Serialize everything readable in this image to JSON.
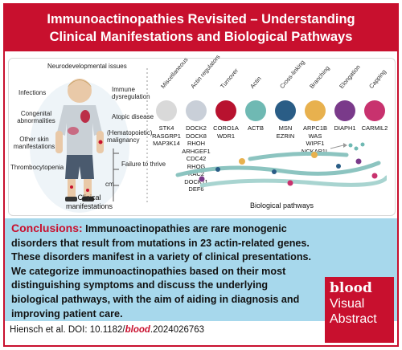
{
  "header": {
    "title_line1": "Immunoactinopathies Revisited – Understanding",
    "title_line2": "Clinical Manifestations and Biological Pathways"
  },
  "clinical": {
    "labels": [
      "Neurodevelopmental issues",
      "Infections",
      "Congenital abnormalities",
      "Other skin manifestations",
      "Thrombocytopenia",
      "Immune dysregulation",
      "Atopic disease",
      "(Hematopoietic) malignancy",
      "Failure to thrive"
    ],
    "cm": "cm",
    "caption_line1": "Clinical",
    "caption_line2": "manifestations"
  },
  "pathways": {
    "caption": "Biological pathways",
    "groups": [
      {
        "name": "Miscellaneous",
        "color": "#d9d9d9",
        "genes": [
          "STK4",
          "RASGRP1",
          "MAP3K14"
        ]
      },
      {
        "name": "Actin regulators",
        "color": "#c9cfd8",
        "genes": [
          "DOCK2",
          "DOCK8",
          "RHOH",
          "ARHGEF1",
          "CDC42",
          "RHOG",
          "RAC2",
          "DOCK11",
          "DEF6"
        ]
      },
      {
        "name": "Turnover",
        "color": "#b8122f",
        "genes": [
          "CORO1A",
          "WDR1"
        ]
      },
      {
        "name": "Actin",
        "color": "#6fb9b3",
        "genes": [
          "ACTB"
        ]
      },
      {
        "name": "Cross-linking",
        "color": "#2a5d86",
        "genes": [
          "MSN",
          "EZRIN"
        ]
      },
      {
        "name": "Branching",
        "color": "#e8b14e",
        "genes": [
          "ARPC1B",
          "WAS",
          "WIPF1",
          "NCKAP1L"
        ]
      },
      {
        "name": "Elongation",
        "color": "#7a3a8a",
        "genes": [
          "DIAPH1"
        ]
      },
      {
        "name": "Capping",
        "color": "#c8326e",
        "genes": [
          "CARMIL2"
        ]
      }
    ]
  },
  "conclusions": {
    "label": "Conclusions:",
    "text": "Immunoactinopathies are rare monogenic disorders that result from mutations in 23 actin-related genes. These disorders manifest in a variety of clinical presentations. We categorize immunoactinopathies based on their most distinguishing symptoms and discuss the underlying biological pathways, with the aim of aiding in diagnosis and improving patient care."
  },
  "citation": {
    "authors": "Hiensch et al. DOI: 10.1182/",
    "journal": "blood",
    "rest": ".2024026763"
  },
  "badge": {
    "line1": "blood",
    "line2": "Visual",
    "line3": "Abstract"
  }
}
